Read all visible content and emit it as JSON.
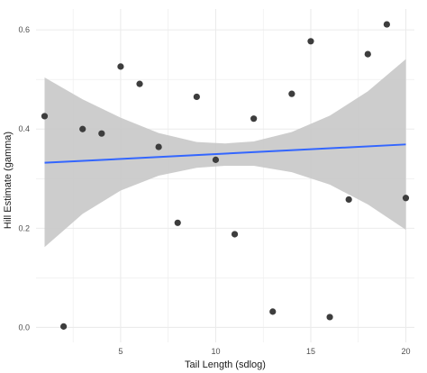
{
  "chart_data": {
    "type": "scatter",
    "title": "",
    "xlabel": "Tail Length (sdlog)",
    "ylabel": "Hill Estimate (gamma)",
    "xlim": [
      0.55,
      20.45
    ],
    "ylim": [
      -0.03,
      0.642
    ],
    "grid": true,
    "legend": "none",
    "x_ticks": [
      5,
      10,
      15,
      20
    ],
    "x_tick_labels": [
      "5",
      "10",
      "15",
      "20"
    ],
    "y_ticks": [
      0.0,
      0.2,
      0.4,
      0.6
    ],
    "y_tick_labels": [
      "0.0",
      "0.2",
      "0.4",
      "0.6"
    ],
    "points": {
      "x": [
        1,
        2,
        3,
        4,
        5,
        6,
        7,
        8,
        9,
        10,
        11,
        12,
        13,
        14,
        15,
        16,
        17,
        18,
        19,
        20
      ],
      "y": [
        0.426,
        0.002,
        0.4,
        0.391,
        0.526,
        0.491,
        0.364,
        0.211,
        0.465,
        0.338,
        0.188,
        0.421,
        0.032,
        0.471,
        0.577,
        0.021,
        0.258,
        0.551,
        0.611,
        0.261
      ]
    },
    "fit_line": {
      "method": "linear",
      "x": [
        1,
        20
      ],
      "y": [
        0.332,
        0.369
      ]
    },
    "confidence_band": {
      "x": [
        1,
        3,
        5,
        7,
        9,
        10.5,
        12,
        14,
        16,
        18,
        20
      ],
      "lower": [
        0.162,
        0.229,
        0.276,
        0.306,
        0.322,
        0.326,
        0.326,
        0.313,
        0.288,
        0.248,
        0.197
      ],
      "upper": [
        0.504,
        0.46,
        0.423,
        0.392,
        0.374,
        0.371,
        0.375,
        0.394,
        0.427,
        0.476,
        0.541
      ]
    },
    "colors": {
      "point": "#3d3d3d",
      "fit_line": "#3366ff",
      "band": "#c8c8c8",
      "grid": "#ebebeb",
      "background": "#ffffff"
    }
  }
}
